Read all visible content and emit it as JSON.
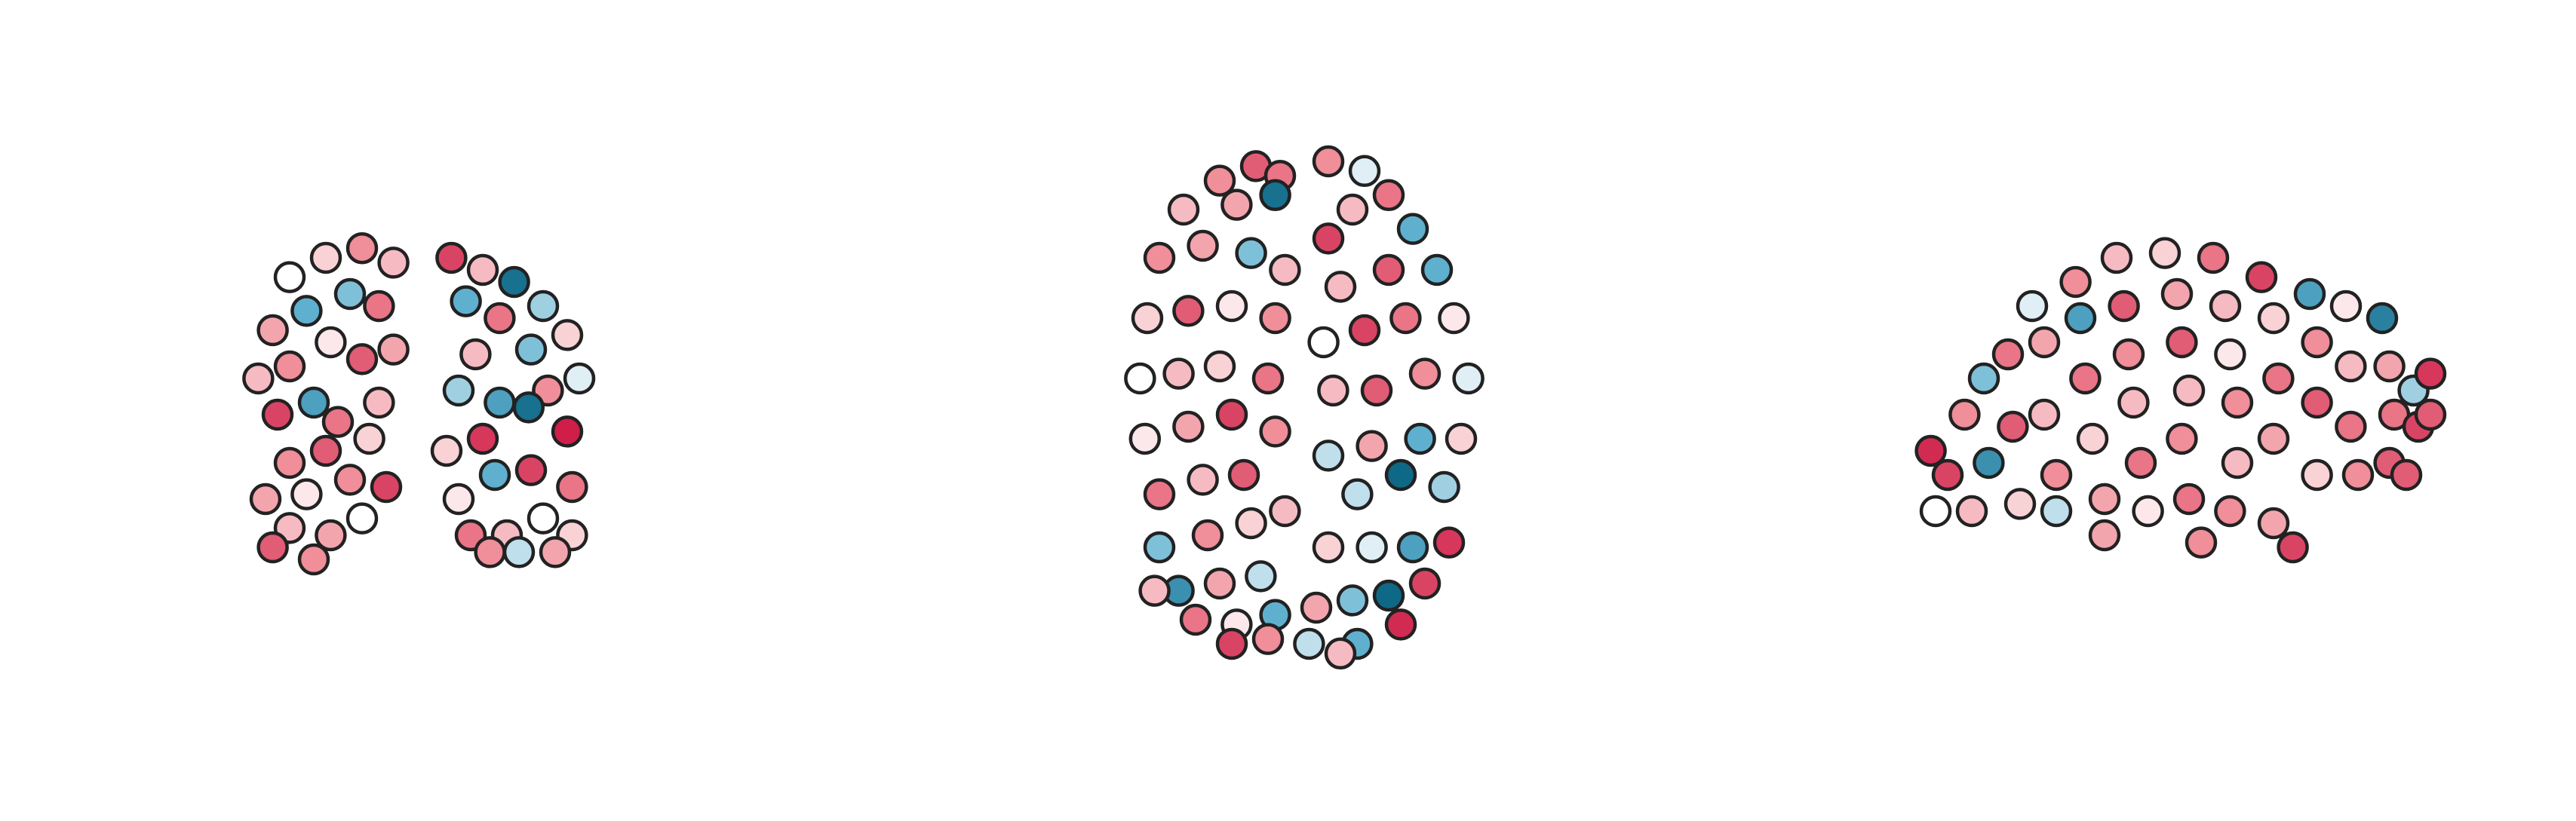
{
  "chart_data": [
    {
      "type": "scatter",
      "view": "coronal",
      "xlim": [
        -74,
        74
      ],
      "ylim": [
        -67,
        67
      ],
      "vlim": [
        -1,
        1
      ],
      "colormap": [
        "#05617f",
        "#5fb0cf",
        "#ffffff",
        "#f08e99",
        "#cb1240"
      ],
      "x": [
        -40,
        -25,
        -55,
        -12,
        -48,
        -30,
        -62,
        -18,
        -38,
        -55,
        -68,
        -25,
        -45,
        -12,
        -60,
        -35,
        -18,
        -55,
        -40,
        -22,
        -65,
        -48,
        -30,
        -15,
        -55,
        -38,
        -62,
        -25,
        -45,
        12,
        25,
        38,
        50,
        18,
        32,
        60,
        45,
        22,
        65,
        52,
        32,
        15,
        44,
        60,
        25,
        10,
        45,
        30,
        62,
        15,
        50,
        35,
        20,
        62,
        40,
        55,
        28
      ],
      "y": [
        60,
        64,
        52,
        58,
        38,
        45,
        30,
        40,
        25,
        15,
        10,
        18,
        0,
        22,
        -5,
        -8,
        0,
        -25,
        -20,
        -15,
        -40,
        -38,
        -32,
        -35,
        -52,
        -55,
        -60,
        -48,
        -65,
        60,
        55,
        50,
        40,
        42,
        35,
        28,
        22,
        20,
        10,
        5,
        0,
        5,
        -2,
        -12,
        -15,
        -20,
        -28,
        -30,
        -35,
        -40,
        -48,
        -55,
        -55,
        -55,
        -62,
        -62,
        -62
      ],
      "values": [
        0.2,
        0.5,
        0,
        0.3,
        -0.5,
        -0.4,
        0.4,
        0.6,
        0.1,
        0.5,
        0.3,
        0.7,
        -0.6,
        0.4,
        0.8,
        0.6,
        0.3,
        0.5,
        0.7,
        0.2,
        0.4,
        0.1,
        0.5,
        0.8,
        0.3,
        0.4,
        0.7,
        0,
        0.5,
        0.8,
        0.3,
        -0.9,
        -0.3,
        -0.5,
        0.6,
        0.2,
        -0.4,
        0.3,
        -0.1,
        0.5,
        -0.6,
        -0.3,
        -0.9,
        0.95,
        0.85,
        0.2,
        0.8,
        -0.5,
        0.6,
        0.1,
        0,
        0.3,
        0.6,
        0.2,
        -0.2,
        0.4,
        0.5
      ]
    },
    {
      "type": "scatter",
      "view": "axial",
      "xlim": [
        -72,
        72
      ],
      "ylim": [
        -109,
        109
      ],
      "vlim": [
        -1,
        1
      ],
      "colormap": [
        "#05617f",
        "#5fb0cf",
        "#ffffff",
        "#f08e99",
        "#cb1240"
      ],
      "x": [
        -20,
        -35,
        -10,
        -50,
        -28,
        -12,
        -60,
        -42,
        -22,
        -8,
        -65,
        -48,
        -30,
        -12,
        -68,
        -52,
        -35,
        -15,
        -66,
        -48,
        -30,
        -12,
        -60,
        -42,
        -25,
        -60,
        -40,
        -22,
        -8,
        -52,
        -35,
        -18,
        -45,
        -28,
        -12,
        -30,
        -15,
        -62,
        10,
        25,
        35,
        20,
        45,
        10,
        55,
        35,
        15,
        62,
        42,
        25,
        8,
        68,
        50,
        30,
        12,
        65,
        48,
        28,
        10,
        40,
        58,
        22,
        60,
        45,
        28,
        10,
        50,
        35,
        20,
        5,
        40,
        22,
        2,
        15
      ],
      "y": [
        98,
        92,
        94,
        80,
        82,
        86,
        60,
        65,
        62,
        55,
        35,
        38,
        40,
        35,
        10,
        12,
        15,
        10,
        -15,
        -10,
        -5,
        -12,
        -38,
        -32,
        -30,
        -60,
        -55,
        -50,
        -45,
        -78,
        -75,
        -72,
        -90,
        -92,
        -88,
        -100,
        -98,
        -78,
        100,
        96,
        86,
        80,
        72,
        68,
        55,
        55,
        48,
        35,
        35,
        30,
        25,
        10,
        12,
        5,
        5,
        -15,
        -15,
        -18,
        -22,
        -30,
        -35,
        -38,
        -58,
        -60,
        -60,
        -60,
        -75,
        -80,
        -82,
        -85,
        -92,
        -100,
        -100,
        -104
      ],
      "values": [
        0.7,
        0.5,
        0.6,
        0.3,
        0.4,
        -0.9,
        0.5,
        0.4,
        -0.4,
        0.3,
        0.2,
        0.7,
        0.1,
        0.5,
        0,
        0.3,
        0.2,
        0.6,
        0.1,
        0.4,
        0.8,
        0.5,
        0.6,
        0.3,
        0.7,
        -0.4,
        0.5,
        0.2,
        0.3,
        -0.7,
        0.4,
        -0.2,
        0.6,
        0.1,
        -0.5,
        0.8,
        0.5,
        0.3,
        0.5,
        -0.1,
        0.6,
        0.3,
        -0.5,
        0.8,
        -0.5,
        0.7,
        0.3,
        0.1,
        0.6,
        0.8,
        0,
        -0.1,
        0.5,
        0.7,
        0.3,
        0.2,
        -0.5,
        0.4,
        -0.2,
        -0.95,
        -0.3,
        -0.2,
        0.85,
        -0.6,
        -0.1,
        0.2,
        0.8,
        -0.95,
        -0.4,
        0.4,
        0.9,
        -0.5,
        -0.2,
        0.3
      ]
    },
    {
      "type": "scatter",
      "view": "sagittal",
      "xlim": [
        -111,
        111
      ],
      "ylim": [
        -68,
        68
      ],
      "vlim": [
        -1,
        1
      ],
      "colormap": [
        "#05617f",
        "#5fb0cf",
        "#ffffff",
        "#f08e99",
        "#cb1240"
      ],
      "x": [
        -102,
        -95,
        -100,
        -88,
        -85,
        -80,
        -78,
        -70,
        -68,
        -65,
        -60,
        -55,
        -55,
        -50,
        -50,
        -42,
        -40,
        -38,
        -35,
        -30,
        -25,
        -22,
        -20,
        -18,
        -15,
        -12,
        -5,
        0,
        2,
        5,
        2,
        5,
        15,
        20,
        22,
        25,
        25,
        22,
        35,
        40,
        42,
        40,
        40,
        48,
        55,
        58,
        58,
        58,
        70,
        72,
        72,
        75,
        85,
        88,
        90,
        88,
        98,
        100,
        105,
        105,
        95,
        -30,
        10
      ],
      "y": [
        -20,
        -30,
        -45,
        -5,
        -45,
        10,
        -25,
        20,
        -10,
        -42,
        40,
        25,
        -5,
        -30,
        -45,
        50,
        35,
        10,
        -15,
        -40,
        60,
        40,
        20,
        0,
        -25,
        -45,
        62,
        45,
        25,
        5,
        -15,
        -40,
        60,
        40,
        20,
        0,
        -25,
        -45,
        52,
        35,
        10,
        -15,
        -50,
        -60,
        45,
        25,
        0,
        -30,
        40,
        15,
        -10,
        -30,
        35,
        15,
        -5,
        -25,
        5,
        -10,
        -5,
        12,
        -30,
        -55,
        -58
      ],
      "values": [
        0.9,
        0.8,
        0,
        0.5,
        0.3,
        -0.4,
        -0.7,
        0.6,
        0.7,
        0.2,
        -0.1,
        0.4,
        0.3,
        0.5,
        -0.2,
        0.5,
        -0.6,
        0.6,
        0.2,
        0.4,
        0.3,
        0.7,
        0.5,
        0.3,
        0.6,
        0.1,
        0.2,
        0.4,
        0.7,
        0.3,
        0.5,
        0.6,
        0.6,
        0.3,
        0.1,
        0.5,
        0.3,
        0.5,
        0.8,
        0.2,
        0.6,
        0.4,
        0.4,
        0.8,
        -0.6,
        0.5,
        0.7,
        0.2,
        0.1,
        0.3,
        0.6,
        0.5,
        -0.8,
        0.4,
        0.6,
        0.7,
        -0.3,
        0.8,
        0.7,
        0.85,
        0.7,
        0.4,
        0.5
      ]
    }
  ]
}
